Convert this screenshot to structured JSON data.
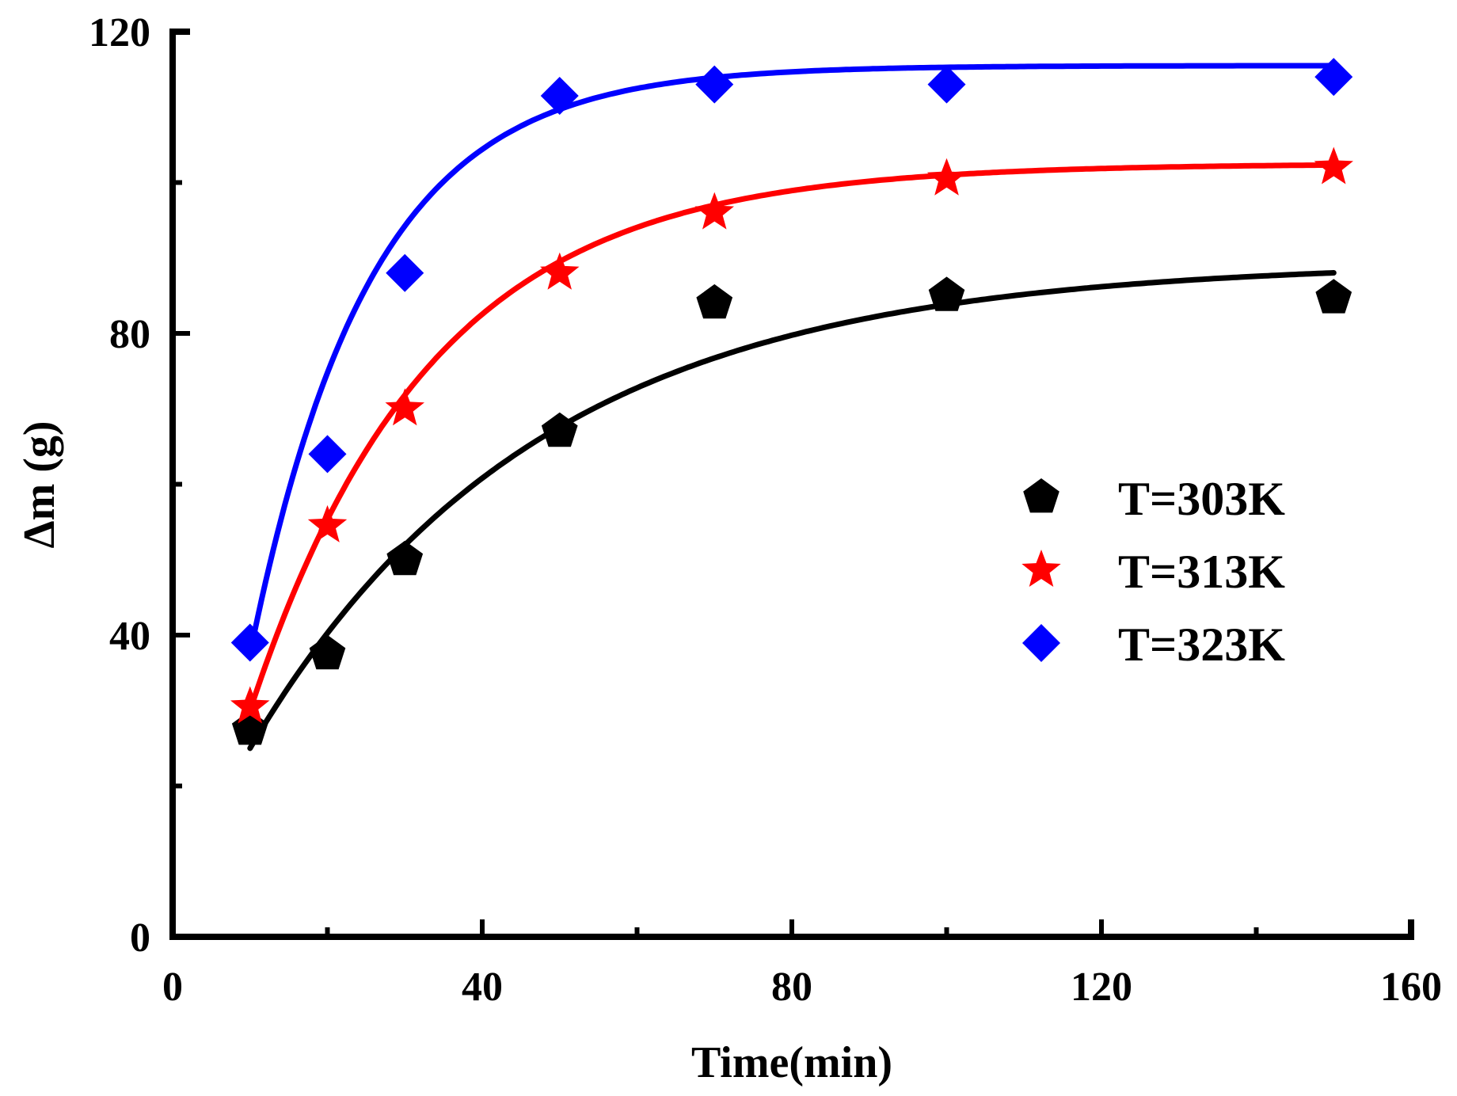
{
  "chart_data": {
    "type": "scatter",
    "title": "",
    "xlabel": "Time(min)",
    "ylabel": "Δm (g)",
    "xlim": [
      0,
      160
    ],
    "ylim": [
      0,
      120
    ],
    "x_ticks": [
      0,
      40,
      80,
      120,
      160
    ],
    "x_tick_labels": [
      "0",
      "40",
      "80",
      "120",
      "160"
    ],
    "x_minor_ticks": [
      20,
      60,
      100,
      140
    ],
    "y_ticks": [
      0,
      40,
      80,
      120
    ],
    "y_tick_labels": [
      "0",
      "40",
      "80",
      "120"
    ],
    "y_minor_ticks": [
      20,
      60,
      100
    ],
    "legend_position": "right-middle",
    "grid": false,
    "series": [
      {
        "name": "T=303K",
        "marker": "pentagon",
        "color": "#000000",
        "x": [
          10,
          20,
          30,
          50,
          70,
          100,
          150
        ],
        "y": [
          27.5,
          37.5,
          50,
          67,
          84,
          85,
          84.7
        ],
        "fit": {
          "x0": 10,
          "y0": 25,
          "ymax": 89.5,
          "k": 0.027
        }
      },
      {
        "name": "T=313K",
        "marker": "star",
        "color": "#ff0000",
        "x": [
          10,
          20,
          30,
          50,
          70,
          100,
          150
        ],
        "y": [
          30.5,
          54.5,
          70,
          88,
          96,
          100.5,
          102
        ],
        "fit": {
          "x0": 10,
          "y0": 30,
          "ymax": 102.5,
          "k": 0.043
        }
      },
      {
        "name": "T=323K",
        "marker": "diamond",
        "color": "#0000ff",
        "x": [
          10,
          20,
          30,
          50,
          70,
          100,
          150
        ],
        "y": [
          39,
          64,
          88,
          111.5,
          113,
          113,
          114
        ],
        "fit": {
          "x0": 10,
          "y0": 37.5,
          "ymax": 115.5,
          "k": 0.065
        }
      }
    ]
  }
}
